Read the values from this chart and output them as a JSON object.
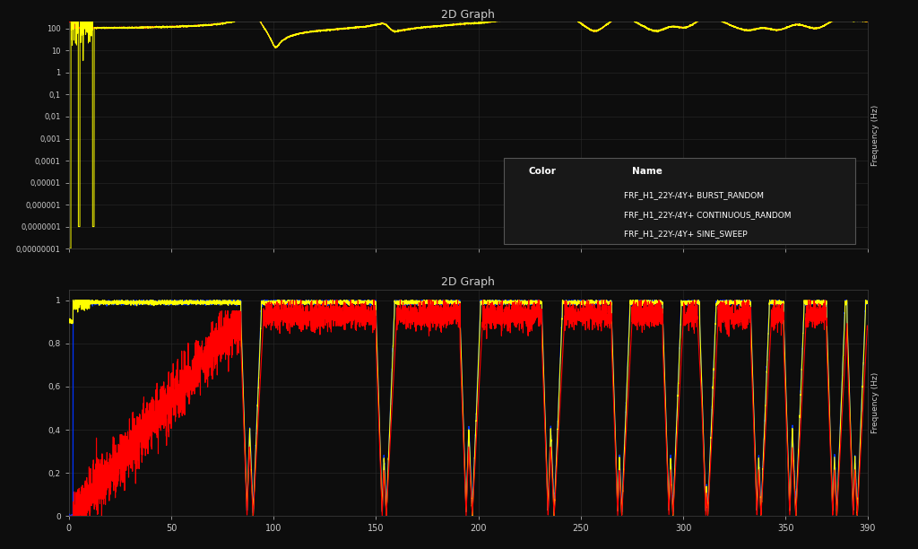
{
  "title_top": "2D Graph",
  "title_bottom": "2D Graph",
  "bg_color": "#0d0d0d",
  "plot_bg_color": "#0d0d0d",
  "grid_color": "#2a2a2a",
  "text_color": "#cccccc",
  "freq_min": 0,
  "freq_max": 390,
  "frf_ylim_log_min": 1e-08,
  "frf_ylim_log_max": 200,
  "coh_ylim_min": 0,
  "coh_ylim_max": 1.05,
  "colors": {
    "burst": "#ff0000",
    "continuous": "#ffff00",
    "sine": "#0033ff"
  },
  "legend_entries": [
    {
      "color": "#ff0000",
      "name": "FRF_H1_22Y-/4Y+ BURST_RANDOM"
    },
    {
      "color": "#ffff00",
      "name": "FRF_H1_22Y-/4Y+ CONTINUOUS_RANDOM"
    },
    {
      "color": "#0033ff",
      "name": "FRF_H1_22Y-/4Y+ SINE_SWEEP"
    }
  ],
  "ylabel_right": "Frequency (Hz)",
  "xticks": [
    0,
    50,
    100,
    150,
    200,
    250,
    300,
    350,
    390
  ]
}
